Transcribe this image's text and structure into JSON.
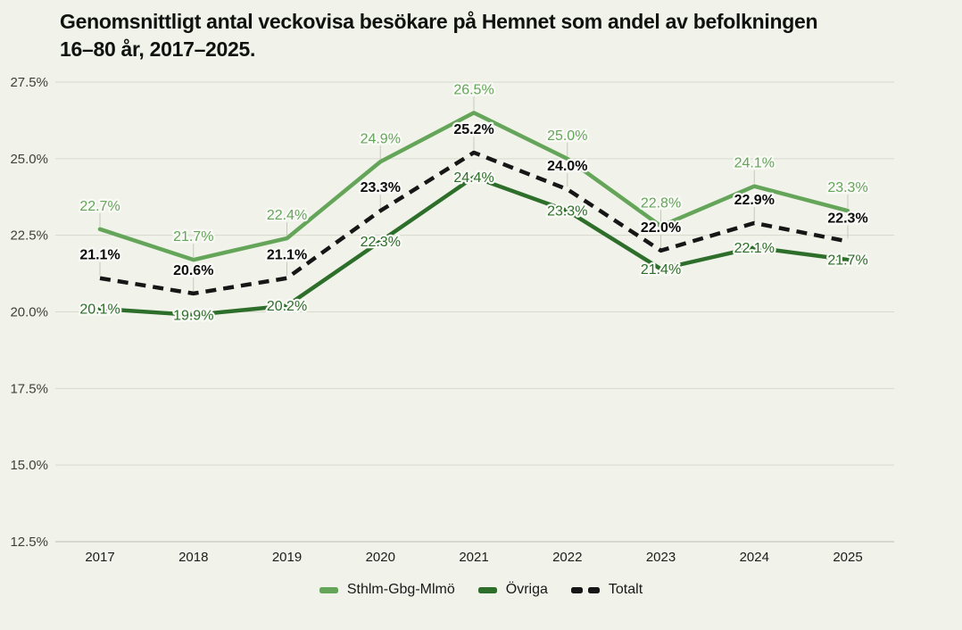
{
  "title": {
    "line1": "Genomsnittligt antal veckovisa besökare på Hemnet som andel av befolkningen",
    "line2": "16–80 år, 2017–2025."
  },
  "colors": {
    "background": "#f1f3ea",
    "gridline": "#d7d9cc",
    "axis_line": "#b9bcb0",
    "connector": "#c5c8bb",
    "light_green": "#65a55a",
    "dark_green": "#2e6e2b",
    "black": "#161616",
    "label_halo": "#f9faf6",
    "tick_text": "#3e403b",
    "year_text": "#1c1c1c"
  },
  "chart_data": {
    "type": "line",
    "title": "Genomsnittligt antal veckovisa besökare på Hemnet som andel av befolkningen 16–80 år, 2017–2025.",
    "x": [
      2017,
      2018,
      2019,
      2020,
      2021,
      2022,
      2023,
      2024,
      2025
    ],
    "ylim": [
      12.5,
      27.5
    ],
    "y_ticks": [
      27.5,
      25.0,
      22.5,
      20.0,
      17.5,
      15.0,
      12.5
    ],
    "y_tick_labels": [
      "27.5%",
      "25.0%",
      "22.5%",
      "20.0%",
      "17.5%",
      "15.0%",
      "12.5%"
    ],
    "grid": "horizontal",
    "legend_position": "bottom",
    "value_label_suffix": "%",
    "series": [
      {
        "name": "Sthlm-Gbg-Mlmö",
        "color": "#65a55a",
        "style": "solid",
        "label_placement": "above",
        "bold_labels": false,
        "values": [
          22.7,
          21.7,
          22.4,
          24.9,
          26.5,
          25.0,
          22.8,
          24.1,
          23.3
        ]
      },
      {
        "name": "Övriga",
        "color": "#2e6e2b",
        "style": "solid",
        "label_placement": "on",
        "bold_labels": false,
        "values": [
          20.1,
          19.9,
          20.2,
          22.3,
          24.4,
          23.3,
          21.4,
          22.1,
          21.7
        ]
      },
      {
        "name": "Totalt",
        "color": "#161616",
        "style": "dashed",
        "label_placement": "above",
        "bold_labels": true,
        "values": [
          21.1,
          20.6,
          21.1,
          23.3,
          25.2,
          24.0,
          22.0,
          22.9,
          22.3
        ]
      }
    ]
  },
  "legend": {
    "items": [
      {
        "label": "Sthlm-Gbg-Mlmö",
        "swatch": "solid",
        "color": "#65a55a"
      },
      {
        "label": "Övriga",
        "swatch": "solid",
        "color": "#2e6e2b"
      },
      {
        "label": "Totalt",
        "swatch": "dashed",
        "color": "#161616"
      }
    ]
  }
}
